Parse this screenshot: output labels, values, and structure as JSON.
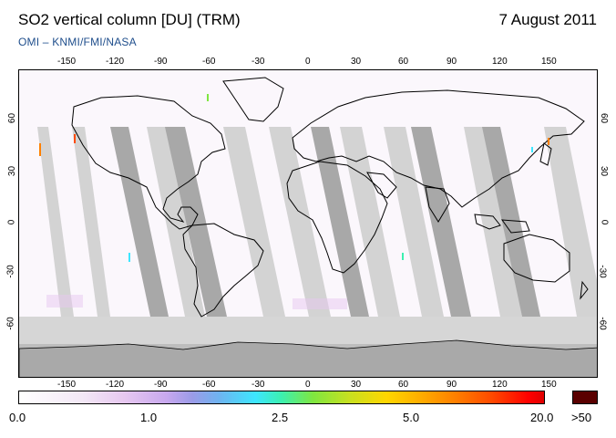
{
  "header": {
    "title": "SO2 vertical column [DU] (TRM)",
    "date": "7 August 2011",
    "source": "OMI  –  KNMI/FMI/NASA"
  },
  "map": {
    "projection": "plate-carree",
    "lon_ticks_top": [
      "-150",
      "-120",
      "-90",
      "-60",
      "-30",
      "0",
      "30",
      "60",
      "90",
      "120",
      "150"
    ],
    "lon_ticks_bottom": [
      "-150",
      "-120",
      "-90",
      "-60",
      "-30",
      "0",
      "30",
      "60",
      "90",
      "120",
      "150"
    ],
    "lat_ticks_left": [
      "60",
      "30",
      "0",
      "-30",
      "-60"
    ],
    "lat_ticks_right": [
      "60",
      "30",
      "0",
      "-30",
      "-60"
    ],
    "colors": {
      "land_outline": "#000000",
      "swath_gap": "#d3d3d3",
      "swath_dark": "#a8a8a8",
      "antarctic": "#a9a9a9",
      "polar_band": "#d6d6d6"
    }
  },
  "colorbar": {
    "labels": [
      "0.0",
      "1.0",
      "2.5",
      "5.0",
      "20.0"
    ],
    "overflow_label": ">50",
    "overflow_color": "#5a0000"
  }
}
